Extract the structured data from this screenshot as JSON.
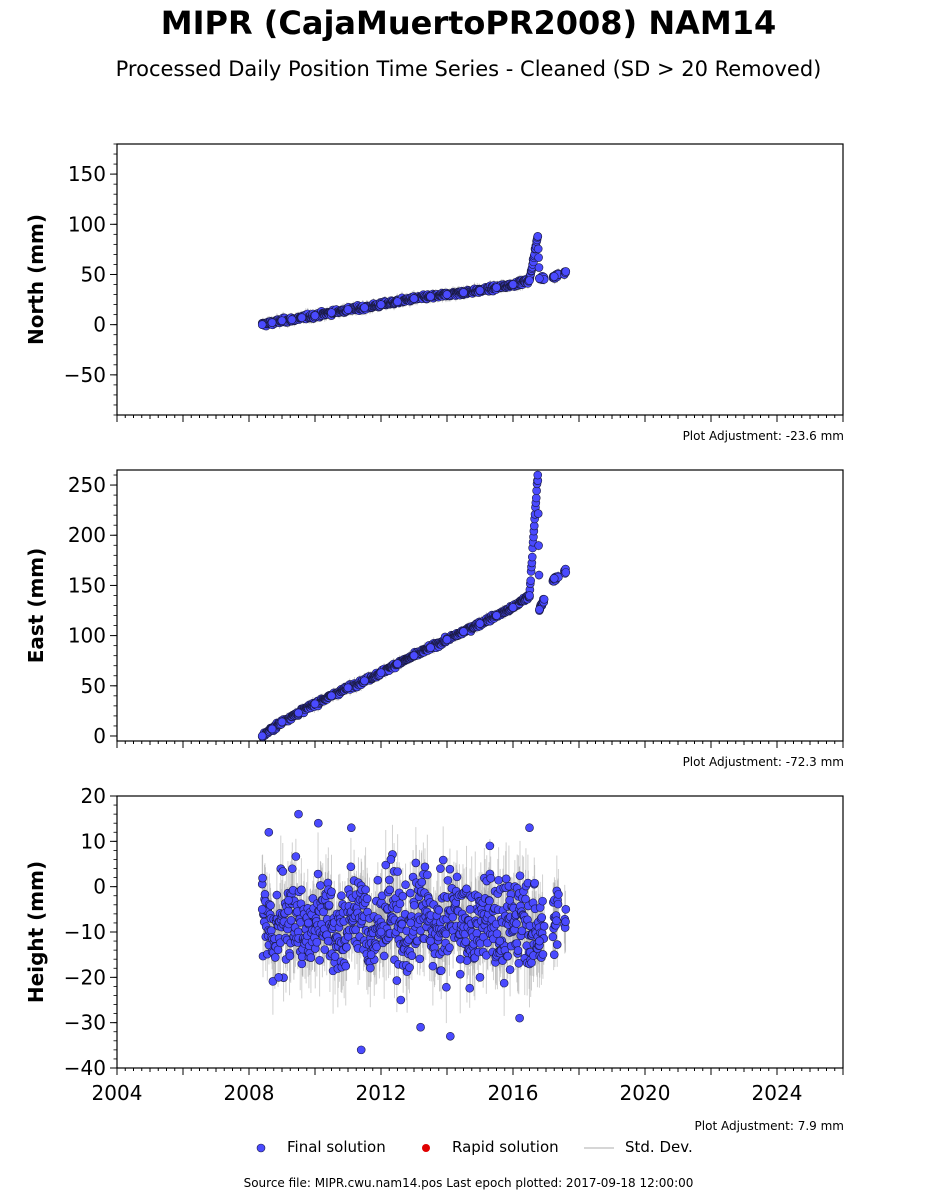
{
  "title": "MIPR (CajaMuertoPR2008) NAM14",
  "subtitle": "Processed Daily Position Time Series - Cleaned (SD > 20 Removed)",
  "colors": {
    "final": "#4a4aff",
    "final_edge": "#1a1a40",
    "rapid": "#e00000",
    "stddev": "#c8c8c8"
  },
  "legend": {
    "final": "Final solution",
    "rapid": "Rapid solution",
    "stddev": "Std. Dev."
  },
  "footer": "Source file: MIPR.cwu.nam14.pos  Last epoch plotted: 2017-09-18 12:00:00",
  "chart_data": [
    {
      "type": "scatter",
      "ylabel": "North (mm)",
      "adjustment": "Plot Adjustment: -23.6 mm",
      "xlim": [
        2004,
        2026
      ],
      "ylim": [
        -90,
        180
      ],
      "yticks": [
        -50,
        0,
        50,
        100,
        150
      ],
      "x_tick_labels": false,
      "series": [
        {
          "name": "Final solution",
          "x": [
            2008.4,
            2008.7,
            2009.0,
            2009.3,
            2009.6,
            2010.0,
            2010.5,
            2011.0,
            2011.5,
            2012.0,
            2012.5,
            2013.0,
            2013.5,
            2014.0,
            2014.5,
            2015.0,
            2015.5,
            2016.0,
            2016.5,
            2016.75,
            2016.8,
            2017.25,
            2017.6
          ],
          "y": [
            0,
            2,
            4,
            5,
            7,
            9,
            12,
            15,
            17,
            20,
            23,
            26,
            28,
            30,
            32,
            34,
            37,
            40,
            44,
            88,
            46,
            48,
            53
          ]
        }
      ]
    },
    {
      "type": "scatter",
      "ylabel": "East (mm)",
      "adjustment": "Plot Adjustment: -72.3 mm",
      "xlim": [
        2004,
        2026
      ],
      "ylim": [
        -5,
        265
      ],
      "yticks": [
        0,
        50,
        100,
        150,
        200,
        250
      ],
      "x_tick_labels": false,
      "series": [
        {
          "name": "Final solution",
          "x": [
            2008.4,
            2008.7,
            2009.0,
            2009.5,
            2010.0,
            2010.5,
            2011.0,
            2011.5,
            2012.0,
            2012.5,
            2013.0,
            2013.5,
            2014.0,
            2014.5,
            2015.0,
            2015.5,
            2016.0,
            2016.5,
            2016.75,
            2016.8,
            2017.25,
            2017.6
          ],
          "y": [
            0,
            7,
            14,
            23,
            32,
            40,
            48,
            55,
            63,
            72,
            80,
            88,
            96,
            104,
            112,
            120,
            128,
            140,
            260,
            126,
            157,
            163
          ]
        }
      ]
    },
    {
      "type": "scatter",
      "ylabel": "Height (mm)",
      "adjustment": "Plot Adjustment: 7.9 mm",
      "xlim": [
        2004,
        2026
      ],
      "ylim": [
        -40,
        20
      ],
      "yticks": [
        -40,
        -30,
        -20,
        -10,
        0,
        10,
        20
      ],
      "x_tick_labels": true,
      "xticks": [
        2004,
        2008,
        2012,
        2016,
        2020,
        2024
      ],
      "series": [
        {
          "name": "Final solution",
          "x": [
            2008.4,
            2008.6,
            2008.9,
            2009.2,
            2009.5,
            2009.8,
            2010.1,
            2010.4,
            2010.8,
            2011.1,
            2011.4,
            2011.7,
            2012.0,
            2012.3,
            2012.6,
            2012.9,
            2013.2,
            2013.5,
            2013.8,
            2014.1,
            2014.4,
            2014.7,
            2015.0,
            2015.3,
            2015.6,
            2015.9,
            2016.2,
            2016.5,
            2016.8,
            2017.25,
            2017.6
          ],
          "y": [
            -5,
            12,
            -20,
            -3,
            16,
            -8,
            14,
            -12,
            -2,
            13,
            -36,
            -15,
            -10,
            6,
            -25,
            -8,
            -31,
            -12,
            4,
            -33,
            -16,
            -5,
            -20,
            9,
            -12,
            -3,
            -29,
            13,
            -12,
            -15,
            -5
          ]
        }
      ]
    }
  ]
}
